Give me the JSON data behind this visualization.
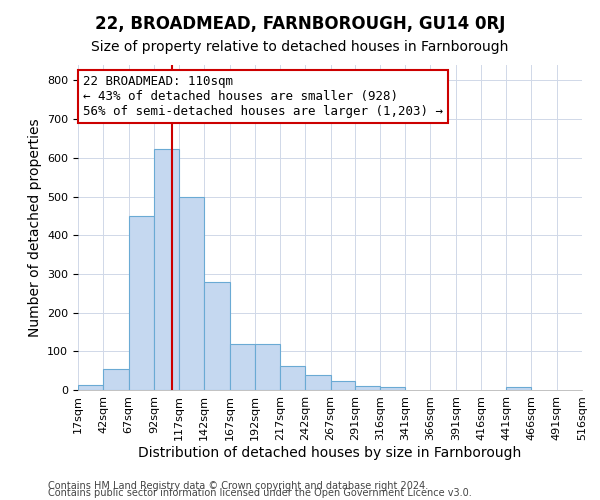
{
  "title": "22, BROADMEAD, FARNBOROUGH, GU14 0RJ",
  "subtitle": "Size of property relative to detached houses in Farnborough",
  "xlabel": "Distribution of detached houses by size in Farnborough",
  "ylabel": "Number of detached properties",
  "footnote1": "Contains HM Land Registry data © Crown copyright and database right 2024.",
  "footnote2": "Contains public sector information licensed under the Open Government Licence v3.0.",
  "bar_edges": [
    17,
    42,
    67,
    92,
    117,
    142,
    167,
    192,
    217,
    242,
    267,
    291,
    316,
    341,
    366,
    391,
    416,
    441,
    466,
    491,
    516
  ],
  "bar_heights": [
    12,
    55,
    450,
    623,
    500,
    280,
    118,
    118,
    62,
    38,
    23,
    10,
    8,
    0,
    0,
    0,
    0,
    8,
    0,
    0
  ],
  "bar_color": "#c5d8f0",
  "bar_edgecolor": "#6aaad4",
  "ylim": [
    0,
    840
  ],
  "yticks": [
    0,
    100,
    200,
    300,
    400,
    500,
    600,
    700,
    800
  ],
  "xtick_labels": [
    "17sqm",
    "42sqm",
    "67sqm",
    "92sqm",
    "117sqm",
    "142sqm",
    "167sqm",
    "192sqm",
    "217sqm",
    "242sqm",
    "267sqm",
    "291sqm",
    "316sqm",
    "341sqm",
    "366sqm",
    "391sqm",
    "416sqm",
    "441sqm",
    "466sqm",
    "491sqm",
    "516sqm"
  ],
  "property_line_x": 110,
  "property_line_color": "#cc0000",
  "annotation_line1": "22 BROADMEAD: 110sqm",
  "annotation_line2": "← 43% of detached houses are smaller (928)",
  "annotation_line3": "56% of semi-detached houses are larger (1,203) →",
  "annotation_box_color": "#ffffff",
  "annotation_box_edgecolor": "#cc0000",
  "grid_color": "#d0d8e8",
  "background_color": "#ffffff",
  "title_fontsize": 12,
  "subtitle_fontsize": 10,
  "axis_label_fontsize": 10,
  "tick_fontsize": 8,
  "annotation_fontsize": 9,
  "footnote_fontsize": 7
}
